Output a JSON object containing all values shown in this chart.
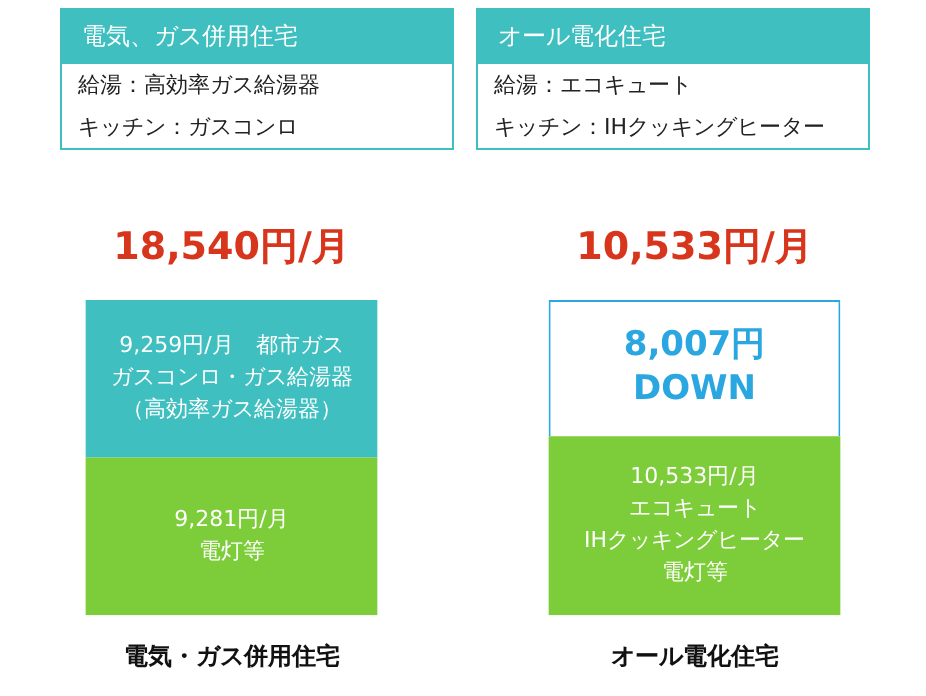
{
  "chart_data": {
    "type": "bar",
    "stacked": true,
    "tick_labels": "x",
    "grid": false,
    "legend": false,
    "categories": [
      "電気・ガス併用住宅",
      "オール電化住宅"
    ],
    "series": [
      {
        "colors": [
          "#7dcc3a",
          "#7dcc3a"
        ],
        "values": [
          9281,
          10533
        ],
        "value_labels": [
          "9,281円/月",
          "10,533円/月"
        ]
      },
      {
        "colors": [
          "#3fbfbf",
          "#ffffff"
        ],
        "values": [
          9259,
          8007
        ],
        "value_labels": [
          "9,259円/月　都市ガス",
          "8,007円"
        ]
      }
    ],
    "annotations": [
      "電気、ガス併用住宅",
      "給湯：高効率ガス給湯器",
      "キッチン：ガスコンロ",
      "オール電化住宅",
      "給湯：エコキュート",
      "キッチン：IHクッキングヒーター",
      "電灯等",
      "ガスコンロ・ガス給湯器",
      "（高効率ガス給湯器）",
      "エコキュート",
      "IHクッキングヒーター",
      "電灯等",
      "DOWN",
      {
        "text": "18,540円/月",
        "x": "電気・ガス併用住宅",
        "y": 18540
      },
      {
        "text": "10,533円/月",
        "x": "オール電化住宅",
        "y": 18540
      }
    ]
  }
}
